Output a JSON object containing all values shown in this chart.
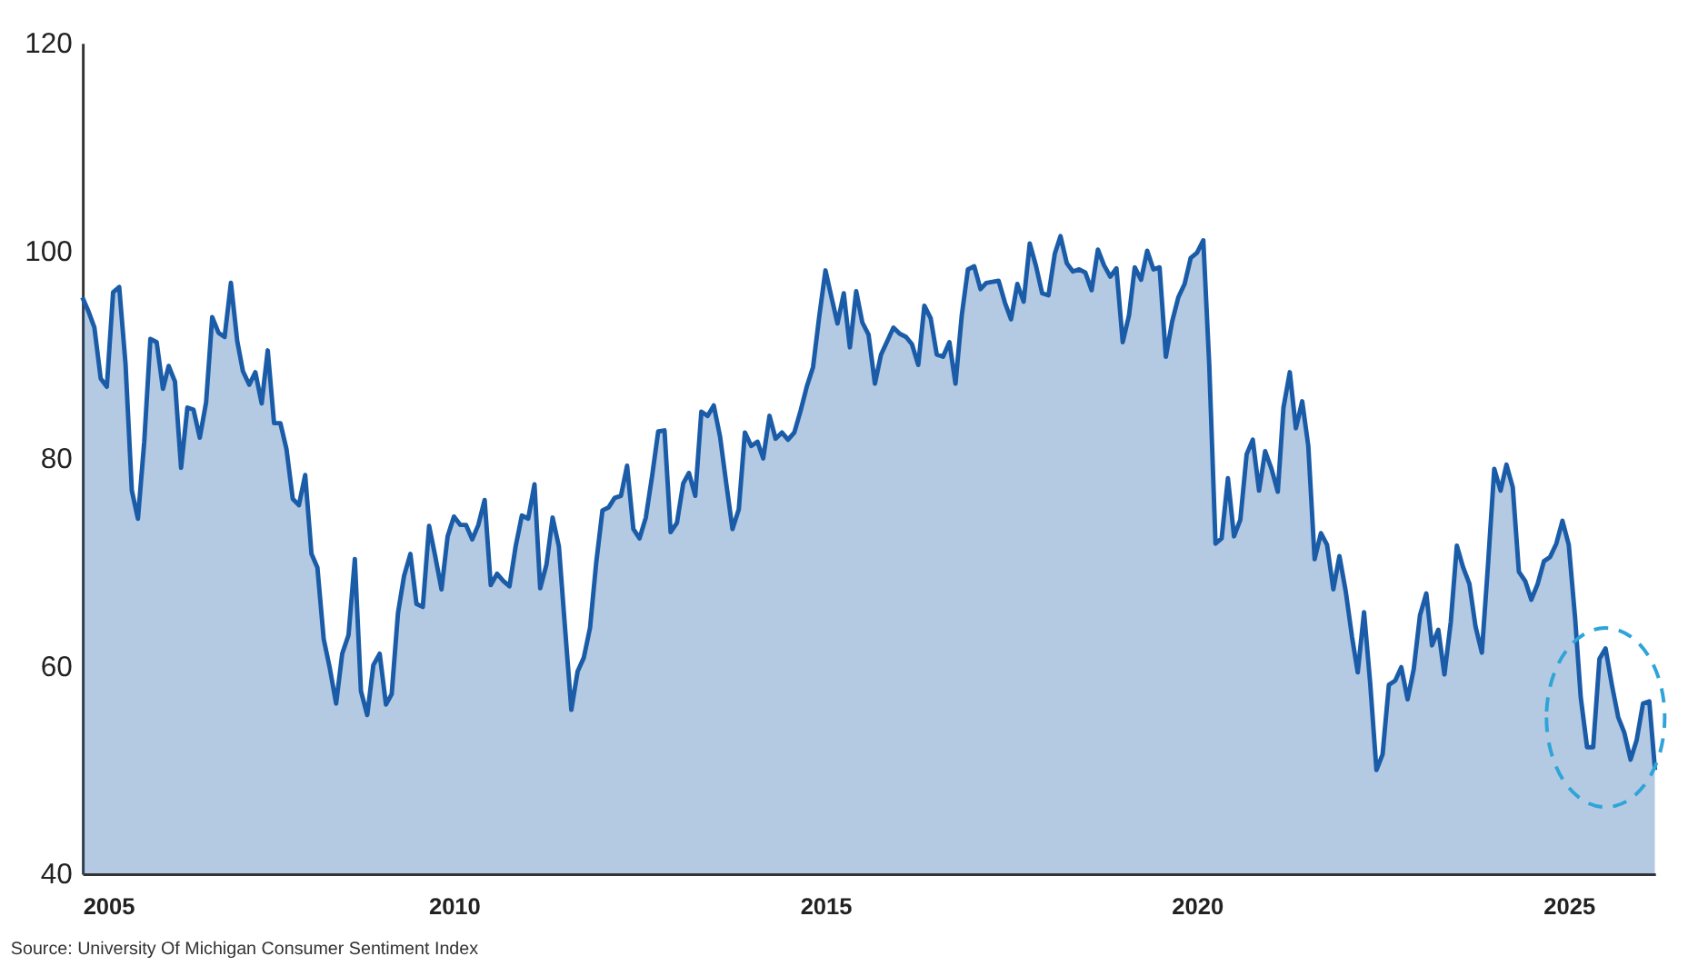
{
  "chart_data": {
    "type": "area",
    "x": [
      "2005-01",
      "2005-02",
      "2005-03",
      "2005-04",
      "2005-05",
      "2005-06",
      "2005-07",
      "2005-08",
      "2005-09",
      "2005-10",
      "2005-11",
      "2005-12",
      "2006-01",
      "2006-02",
      "2006-03",
      "2006-04",
      "2006-05",
      "2006-06",
      "2006-07",
      "2006-08",
      "2006-09",
      "2006-10",
      "2006-11",
      "2006-12",
      "2007-01",
      "2007-02",
      "2007-03",
      "2007-04",
      "2007-05",
      "2007-06",
      "2007-07",
      "2007-08",
      "2007-09",
      "2007-10",
      "2007-11",
      "2007-12",
      "2008-01",
      "2008-02",
      "2008-03",
      "2008-04",
      "2008-05",
      "2008-06",
      "2008-07",
      "2008-08",
      "2008-09",
      "2008-10",
      "2008-11",
      "2008-12",
      "2009-01",
      "2009-02",
      "2009-03",
      "2009-04",
      "2009-05",
      "2009-06",
      "2009-07",
      "2009-08",
      "2009-09",
      "2009-10",
      "2009-11",
      "2009-12",
      "2010-01",
      "2010-02",
      "2010-03",
      "2010-04",
      "2010-05",
      "2010-06",
      "2010-07",
      "2010-08",
      "2010-09",
      "2010-10",
      "2010-11",
      "2010-12",
      "2011-01",
      "2011-02",
      "2011-03",
      "2011-04",
      "2011-05",
      "2011-06",
      "2011-07",
      "2011-08",
      "2011-09",
      "2011-10",
      "2011-11",
      "2011-12",
      "2012-01",
      "2012-02",
      "2012-03",
      "2012-04",
      "2012-05",
      "2012-06",
      "2012-07",
      "2012-08",
      "2012-09",
      "2012-10",
      "2012-11",
      "2012-12",
      "2013-01",
      "2013-02",
      "2013-03",
      "2013-04",
      "2013-05",
      "2013-06",
      "2013-07",
      "2013-08",
      "2013-09",
      "2013-10",
      "2013-11",
      "2013-12",
      "2014-01",
      "2014-02",
      "2014-03",
      "2014-04",
      "2014-05",
      "2014-06",
      "2014-07",
      "2014-08",
      "2014-09",
      "2014-10",
      "2014-11",
      "2014-12",
      "2015-01",
      "2015-02",
      "2015-03",
      "2015-04",
      "2015-05",
      "2015-06",
      "2015-07",
      "2015-08",
      "2015-09",
      "2015-10",
      "2015-11",
      "2015-12",
      "2016-01",
      "2016-02",
      "2016-03",
      "2016-04",
      "2016-05",
      "2016-06",
      "2016-07",
      "2016-08",
      "2016-09",
      "2016-10",
      "2016-11",
      "2016-12",
      "2017-01",
      "2017-02",
      "2017-03",
      "2017-04",
      "2017-05",
      "2017-06",
      "2017-07",
      "2017-08",
      "2017-09",
      "2017-10",
      "2017-11",
      "2017-12",
      "2018-01",
      "2018-02",
      "2018-03",
      "2018-04",
      "2018-05",
      "2018-06",
      "2018-07",
      "2018-08",
      "2018-09",
      "2018-10",
      "2018-11",
      "2018-12",
      "2019-01",
      "2019-02",
      "2019-03",
      "2019-04",
      "2019-05",
      "2019-06",
      "2019-07",
      "2019-08",
      "2019-09",
      "2019-10",
      "2019-11",
      "2019-12",
      "2020-01",
      "2020-02",
      "2020-03",
      "2020-04",
      "2020-05",
      "2020-06",
      "2020-07",
      "2020-08",
      "2020-09",
      "2020-10",
      "2020-11",
      "2020-12",
      "2021-01",
      "2021-02",
      "2021-03",
      "2021-04",
      "2021-05",
      "2021-06",
      "2021-07",
      "2021-08",
      "2021-09",
      "2021-10",
      "2021-11",
      "2021-12",
      "2022-01",
      "2022-02",
      "2022-03",
      "2022-04",
      "2022-05",
      "2022-06",
      "2022-07",
      "2022-08",
      "2022-09",
      "2022-10",
      "2022-11",
      "2022-12",
      "2023-01",
      "2023-02",
      "2023-03",
      "2023-04",
      "2023-05",
      "2023-06",
      "2023-07",
      "2023-08",
      "2023-09",
      "2023-10",
      "2023-11",
      "2023-12",
      "2024-01",
      "2024-02",
      "2024-03",
      "2024-04",
      "2024-05",
      "2024-06",
      "2024-07",
      "2024-08",
      "2024-09",
      "2024-10",
      "2024-11",
      "2024-12",
      "2025-01",
      "2025-02",
      "2025-03",
      "2025-04",
      "2025-05",
      "2025-06",
      "2025-07",
      "2025-08",
      "2025-09",
      "2025-10",
      "2025-11",
      "2025-12",
      "2026-01",
      "2026-02",
      "2026-03"
    ],
    "series": [
      {
        "color": "#1a5ca8",
        "values": [
          95.5,
          94.1,
          92.6,
          87.7,
          86.9,
          96.0,
          96.5,
          89.1,
          76.9,
          74.2,
          81.6,
          91.5,
          91.2,
          86.7,
          88.9,
          87.4,
          79.1,
          84.9,
          84.7,
          82.0,
          85.4,
          93.6,
          92.1,
          91.7,
          96.9,
          91.3,
          88.4,
          87.1,
          88.3,
          85.3,
          90.4,
          83.4,
          83.4,
          80.9,
          76.1,
          75.5,
          78.4,
          70.8,
          69.5,
          62.6,
          59.8,
          56.4,
          61.2,
          63.0,
          70.3,
          57.6,
          55.3,
          60.1,
          61.2,
          56.3,
          57.3,
          65.1,
          68.7,
          70.8,
          66.0,
          65.7,
          73.5,
          70.6,
          67.4,
          72.5,
          74.4,
          73.6,
          73.6,
          72.2,
          73.6,
          76.0,
          67.8,
          68.9,
          68.2,
          67.7,
          71.6,
          74.5,
          74.2,
          77.5,
          67.5,
          69.8,
          74.3,
          71.5,
          63.7,
          55.8,
          59.5,
          60.8,
          63.7,
          69.9,
          75.0,
          75.3,
          76.2,
          76.4,
          79.3,
          73.2,
          72.3,
          74.3,
          78.3,
          82.6,
          82.7,
          72.9,
          73.8,
          77.6,
          78.6,
          76.4,
          84.5,
          84.1,
          85.1,
          82.1,
          77.5,
          73.2,
          75.1,
          82.5,
          81.2,
          81.6,
          80.0,
          84.1,
          81.9,
          82.5,
          81.8,
          82.5,
          84.6,
          86.9,
          88.8,
          93.6,
          98.1,
          95.4,
          93.0,
          95.9,
          90.7,
          96.1,
          93.1,
          91.9,
          87.2,
          90.0,
          91.3,
          92.6,
          92.0,
          91.7,
          91.0,
          89.0,
          94.7,
          93.5,
          90.0,
          89.8,
          91.2,
          87.2,
          93.8,
          98.2,
          98.5,
          96.3,
          96.9,
          97.0,
          97.1,
          95.0,
          93.4,
          96.8,
          95.1,
          100.7,
          98.5,
          95.9,
          95.7,
          99.7,
          101.4,
          98.8,
          98.0,
          98.2,
          97.9,
          96.2,
          100.1,
          98.6,
          97.5,
          98.3,
          91.2,
          93.8,
          98.4,
          97.2,
          100.0,
          98.2,
          98.4,
          89.8,
          93.2,
          95.5,
          96.8,
          99.3,
          99.8,
          101.0,
          89.1,
          71.8,
          72.3,
          78.1,
          72.5,
          74.1,
          80.4,
          81.8,
          76.9,
          80.7,
          79.0,
          76.8,
          84.9,
          88.3,
          82.9,
          85.5,
          81.2,
          70.3,
          72.8,
          71.7,
          67.4,
          70.6,
          67.2,
          62.8,
          59.4,
          65.2,
          58.4,
          50.0,
          51.5,
          58.2,
          58.6,
          59.9,
          56.8,
          59.7,
          64.9,
          67.0,
          62.0,
          63.5,
          59.2,
          64.2,
          71.6,
          69.5,
          67.9,
          63.8,
          61.3,
          69.7,
          79.0,
          76.9,
          79.4,
          77.2,
          69.1,
          68.2,
          66.4,
          67.9,
          70.1,
          70.5,
          71.8,
          74.0,
          71.7,
          64.7,
          57.0,
          52.2,
          52.2,
          60.7,
          61.7,
          58.2,
          55.1,
          53.6,
          51.0,
          52.9,
          56.4,
          56.6,
          50.0
        ]
      }
    ],
    "xlim": [
      "2005-01",
      "2026-03"
    ],
    "xticks": [
      "2005",
      "2010",
      "2015",
      "2020",
      "2025"
    ],
    "ylim": [
      40,
      120
    ],
    "yticks": [
      40,
      60,
      80,
      100,
      120
    ],
    "grid": false,
    "annotations": [
      "Source: University Of Michigan Consumer Sentiment Index"
    ]
  }
}
